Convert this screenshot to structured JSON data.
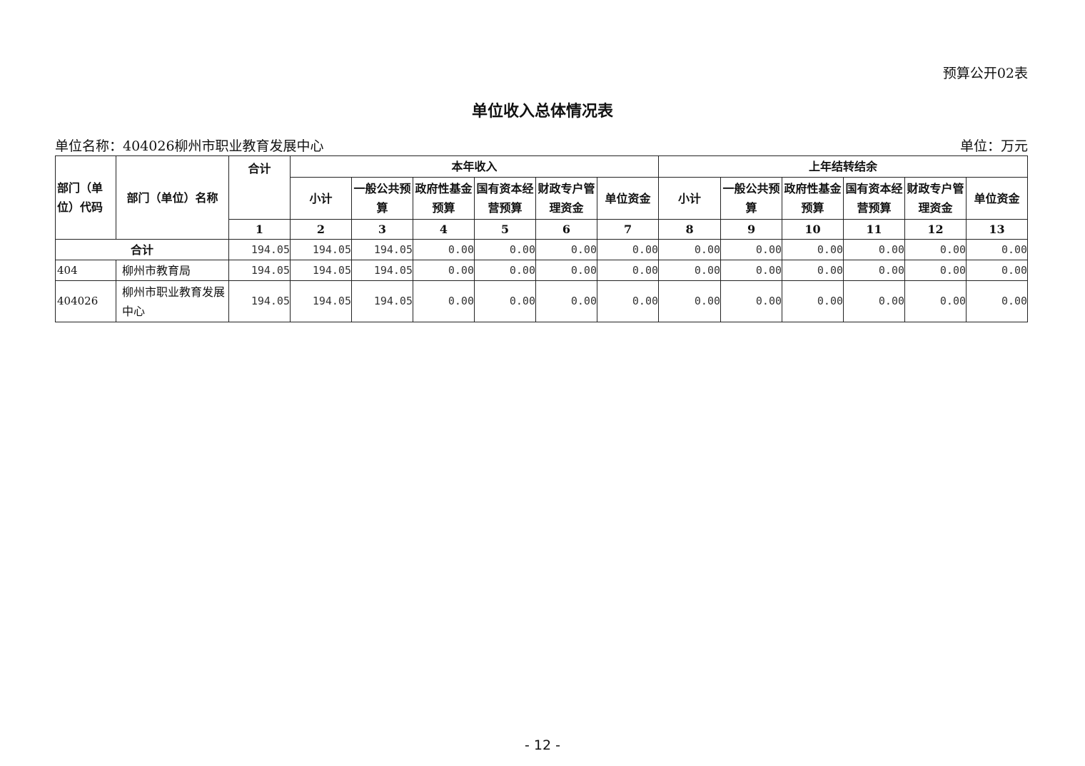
{
  "table_tag": "预算公开02表",
  "title": "单位收入总体情况表",
  "unit_name": "单位名称：404026柳州市职业教育发展中心",
  "unit": "单位：万元",
  "header": {
    "dept_code": "部门（单位）代码",
    "dept_name": "部门（单位）名称",
    "total": "合计",
    "group_current": "本年收入",
    "group_prev": "上年结转结余",
    "sub_columns": [
      "小计",
      "一般公共预算",
      "政府性基金预算",
      "国有资本经营预算",
      "财政专户管理资金",
      "单位资金"
    ],
    "indexes": [
      "1",
      "2",
      "3",
      "4",
      "5",
      "6",
      "7",
      "8",
      "9",
      "10",
      "11",
      "12",
      "13"
    ]
  },
  "rows": [
    {
      "code": "",
      "name": "合计",
      "values": [
        "194.05",
        "194.05",
        "194.05",
        "0.00",
        "0.00",
        "0.00",
        "0.00",
        "0.00",
        "0.00",
        "0.00",
        "0.00",
        "0.00",
        "0.00"
      ]
    },
    {
      "code": "404",
      "name": "柳州市教育局",
      "values": [
        "194.05",
        "194.05",
        "194.05",
        "0.00",
        "0.00",
        "0.00",
        "0.00",
        "0.00",
        "0.00",
        "0.00",
        "0.00",
        "0.00",
        "0.00"
      ]
    },
    {
      "code": "404026",
      "name": "柳州市职业教育发展中心",
      "values": [
        "194.05",
        "194.05",
        "194.05",
        "0.00",
        "0.00",
        "0.00",
        "0.00",
        "0.00",
        "0.00",
        "0.00",
        "0.00",
        "0.00",
        "0.00"
      ]
    }
  ],
  "page_number": "- 12 -"
}
